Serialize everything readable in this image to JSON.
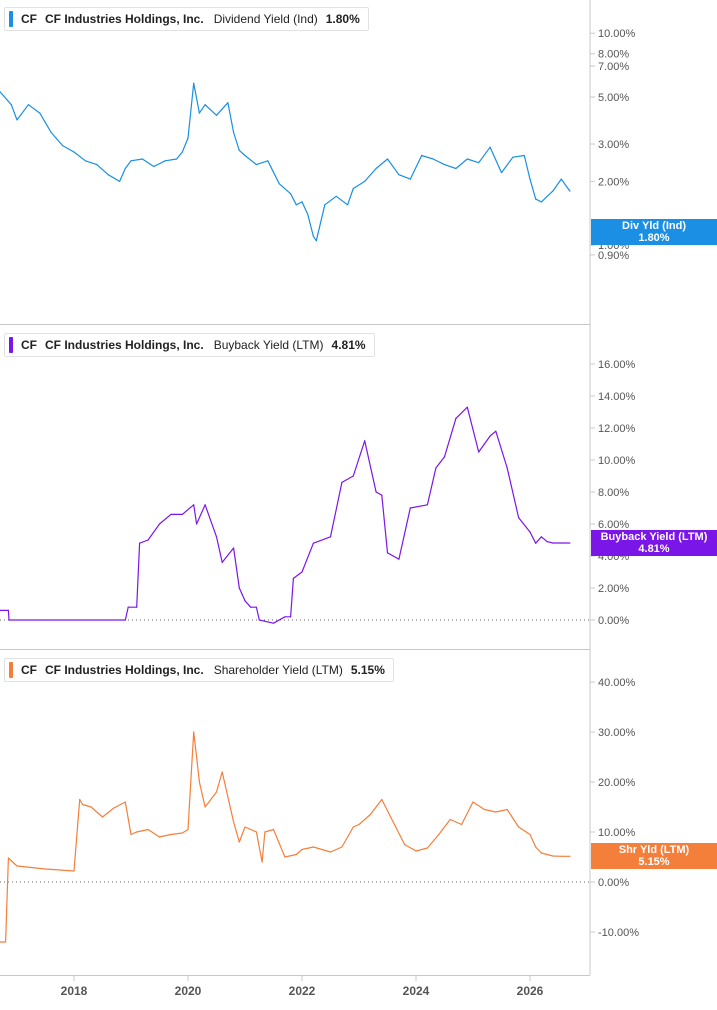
{
  "panels": [
    {
      "ticker": "CF",
      "company": "CF Industries Holdings, Inc.",
      "metric": "Dividend Yield (Ind)",
      "value": "1.80%",
      "color": "#1a8fe3",
      "tag_label": "Div Yld (Ind)",
      "tag_value": "1.80%",
      "y_scale": "log",
      "y_ticks": [
        "10.00%",
        "8.00%",
        "7.00%",
        "5.00%",
        "3.00%",
        "2.00%",
        "1.00%",
        "0.90%"
      ]
    },
    {
      "ticker": "CF",
      "company": "CF Industries Holdings, Inc.",
      "metric": "Buyback Yield (LTM)",
      "value": "4.81%",
      "color": "#7b16e8",
      "tag_label": "Buyback Yield (LTM)",
      "tag_value": "4.81%",
      "y_scale": "linear",
      "y_ticks": [
        "16.00%",
        "14.00%",
        "12.00%",
        "10.00%",
        "8.00%",
        "6.00%",
        "4.00%",
        "2.00%",
        "0.00%"
      ],
      "zero_line": true
    },
    {
      "ticker": "CF",
      "company": "CF Industries Holdings, Inc.",
      "metric": "Shareholder Yield (LTM)",
      "value": "5.15%",
      "color": "#f47f3b",
      "tag_label": "Shr Yld (LTM)",
      "tag_value": "5.15%",
      "y_scale": "linear",
      "y_ticks": [
        "40.00%",
        "30.00%",
        "20.00%",
        "10.00%",
        "0.00%",
        "-10.00%"
      ],
      "zero_line": true
    }
  ],
  "x_ticks": [
    "2018",
    "2020",
    "2022",
    "2024",
    "2026"
  ],
  "chart_data": [
    {
      "type": "line",
      "title": "CF Industries Holdings, Inc. Dividend Yield (Ind)",
      "y_scale": "log",
      "ylim": [
        0.9,
        10
      ],
      "series": [
        {
          "name": "Dividend Yield (Ind)",
          "x": [
            2016.7,
            2016.9,
            2017.0,
            2017.2,
            2017.4,
            2017.6,
            2017.8,
            2018.0,
            2018.2,
            2018.4,
            2018.6,
            2018.8,
            2018.9,
            2019.0,
            2019.2,
            2019.4,
            2019.6,
            2019.8,
            2019.9,
            2020.0,
            2020.1,
            2020.2,
            2020.3,
            2020.5,
            2020.7,
            2020.8,
            2020.9,
            2021.0,
            2021.2,
            2021.4,
            2021.6,
            2021.8,
            2021.9,
            2022.0,
            2022.1,
            2022.2,
            2022.25,
            2022.4,
            2022.6,
            2022.8,
            2022.9,
            2023.1,
            2023.3,
            2023.5,
            2023.7,
            2023.9,
            2024.1,
            2024.3,
            2024.5,
            2024.7,
            2024.9,
            2025.1,
            2025.3,
            2025.5,
            2025.7,
            2025.9,
            2026.0,
            2026.1,
            2026.2,
            2026.4,
            2026.55,
            2026.7
          ],
          "y": [
            5.3,
            4.6,
            3.9,
            4.6,
            4.2,
            3.4,
            2.95,
            2.75,
            2.5,
            2.4,
            2.15,
            2.0,
            2.3,
            2.5,
            2.55,
            2.35,
            2.5,
            2.55,
            2.75,
            3.2,
            5.8,
            4.2,
            4.6,
            4.1,
            4.7,
            3.4,
            2.8,
            2.65,
            2.4,
            2.5,
            1.95,
            1.75,
            1.55,
            1.6,
            1.4,
            1.1,
            1.05,
            1.55,
            1.7,
            1.55,
            1.85,
            2.0,
            2.3,
            2.55,
            2.15,
            2.05,
            2.65,
            2.55,
            2.4,
            2.3,
            2.55,
            2.45,
            2.9,
            2.2,
            2.6,
            2.65,
            2.05,
            1.65,
            1.6,
            1.8,
            2.05,
            1.8
          ]
        }
      ]
    },
    {
      "type": "line",
      "title": "CF Industries Holdings, Inc. Buyback Yield (LTM)",
      "ylim": [
        -1,
        17
      ],
      "series": [
        {
          "name": "Buyback Yield (LTM)",
          "x": [
            2016.7,
            2016.85,
            2016.86,
            2017.5,
            2018.9,
            2018.95,
            2019.1,
            2019.15,
            2019.3,
            2019.5,
            2019.7,
            2019.9,
            2020.1,
            2020.15,
            2020.3,
            2020.5,
            2020.6,
            2020.8,
            2020.9,
            2021.0,
            2021.1,
            2021.2,
            2021.25,
            2021.5,
            2021.7,
            2021.8,
            2021.85,
            2022.0,
            2022.2,
            2022.5,
            2022.7,
            2022.9,
            2023.1,
            2023.3,
            2023.4,
            2023.5,
            2023.6,
            2023.7,
            2023.9,
            2024.2,
            2024.35,
            2024.5,
            2024.7,
            2024.9,
            2025.1,
            2025.2,
            2025.3,
            2025.4,
            2025.6,
            2025.8,
            2026.0,
            2026.1,
            2026.2,
            2026.3,
            2026.4,
            2026.55,
            2026.7
          ],
          "y": [
            0.6,
            0.6,
            0.0,
            0.0,
            0.0,
            0.8,
            0.8,
            4.8,
            5.0,
            6.0,
            6.6,
            6.6,
            7.2,
            6.0,
            7.2,
            5.2,
            3.6,
            4.5,
            2.0,
            1.2,
            0.8,
            0.8,
            0.0,
            -0.2,
            0.2,
            0.2,
            2.6,
            3.0,
            4.8,
            5.2,
            8.6,
            9.0,
            11.2,
            8.0,
            7.8,
            4.2,
            4.0,
            3.8,
            7.0,
            7.2,
            9.5,
            10.2,
            12.6,
            13.3,
            10.5,
            11.0,
            11.5,
            11.8,
            9.5,
            6.4,
            5.5,
            4.8,
            5.2,
            4.9,
            4.81,
            4.81,
            4.81
          ]
        }
      ]
    },
    {
      "type": "line",
      "title": "CF Industries Holdings, Inc. Shareholder Yield (LTM)",
      "ylim": [
        -13,
        45
      ],
      "series": [
        {
          "name": "Shareholder Yield (LTM)",
          "x": [
            2016.7,
            2016.8,
            2016.85,
            2017.0,
            2017.5,
            2018.0,
            2018.1,
            2018.15,
            2018.3,
            2018.5,
            2018.7,
            2018.9,
            2019.0,
            2019.1,
            2019.3,
            2019.5,
            2019.7,
            2019.9,
            2020.0,
            2020.1,
            2020.15,
            2020.2,
            2020.3,
            2020.5,
            2020.6,
            2020.8,
            2020.9,
            2021.0,
            2021.2,
            2021.3,
            2021.35,
            2021.5,
            2021.7,
            2021.9,
            2022.0,
            2022.2,
            2022.5,
            2022.7,
            2022.9,
            2023.0,
            2023.2,
            2023.4,
            2023.6,
            2023.8,
            2024.0,
            2024.2,
            2024.4,
            2024.6,
            2024.8,
            2025.0,
            2025.2,
            2025.4,
            2025.6,
            2025.8,
            2026.0,
            2026.1,
            2026.2,
            2026.4,
            2026.55,
            2026.7
          ],
          "y": [
            -12,
            -12,
            4.8,
            3.2,
            2.6,
            2.2,
            16.5,
            15.5,
            15.0,
            13.0,
            14.8,
            16.0,
            9.5,
            10.0,
            10.5,
            9.0,
            9.5,
            9.8,
            10.5,
            30.0,
            25.0,
            20.0,
            15.0,
            18.0,
            22.0,
            12.0,
            8.0,
            11.0,
            10.0,
            4.0,
            10.0,
            10.5,
            5.0,
            5.5,
            6.5,
            7.0,
            6.0,
            7.0,
            11.0,
            11.5,
            13.5,
            16.5,
            12.0,
            7.5,
            6.2,
            6.8,
            9.5,
            12.5,
            11.5,
            16.0,
            14.5,
            14.0,
            14.5,
            11.0,
            9.5,
            7.0,
            5.8,
            5.2,
            5.15,
            5.15
          ]
        }
      ]
    }
  ]
}
